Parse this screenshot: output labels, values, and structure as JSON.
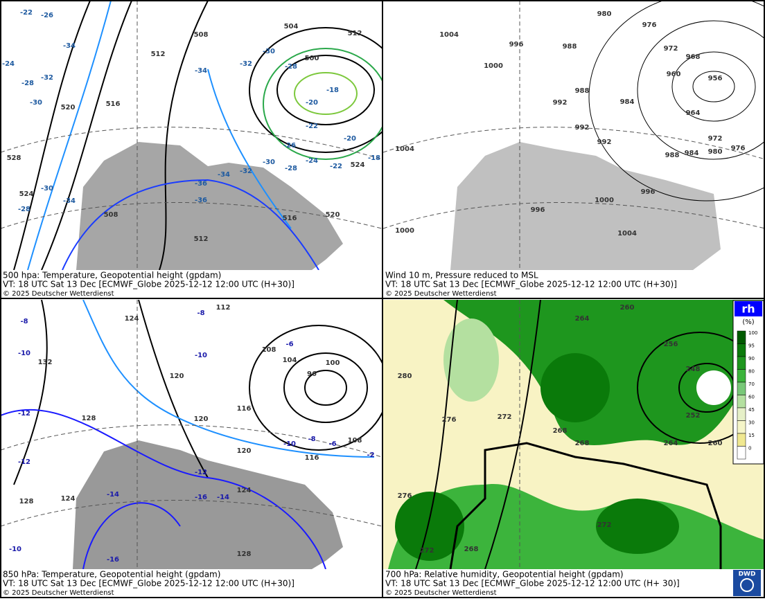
{
  "panels": [
    {
      "caption": [
        "500 hpa: Temperature, Geopotential height (gpdam)",
        "VT: 18 UTC Sat  13 Dec [ECMWF_Globe 2025-12-12 12:00 UTC  (H+30)]",
        "© 2025 Deutscher Wetterdienst"
      ],
      "labels": [
        "504",
        "500",
        "508",
        "512",
        "516",
        "520",
        "524",
        "528",
        "512",
        "524",
        "520",
        "516",
        "512",
        "508",
        "-30",
        "-28",
        "-26",
        "-28",
        "-30",
        "-32",
        "-32",
        "-34",
        "-34",
        "-36",
        "-36",
        "-34",
        "-24",
        "-22",
        "-20",
        "-22",
        "-18",
        "-20",
        "-18",
        "-30",
        "-28",
        "-34",
        "-32",
        "-30",
        "-22",
        "-26",
        "-24",
        "-28"
      ]
    },
    {
      "caption": [
        "Wind 10 m, Pressure reduced to MSL",
        "VT: 18 UTC Sat  13 Dec [ECMWF_Globe 2025-12-12 12:00 UTC  (H+30)]",
        "© 2025 Deutscher Wetterdienst"
      ],
      "labels": [
        "1004",
        "996",
        "988",
        "980",
        "976",
        "972",
        "968",
        "960",
        "956",
        "964",
        "972",
        "980",
        "976",
        "984",
        "988",
        "984",
        "988",
        "992",
        "992",
        "992",
        "1000",
        "1004",
        "996",
        "1000",
        "996",
        "1004",
        "1000"
      ]
    },
    {
      "caption": [
        "850 hPa:  Temperature, Geopotential height (gpdam)",
        "VT: 18 UTC Sat  13 Dec [ECMWF_Globe 2025-12-12 12:00 UTC  (H+30)]",
        "© 2025 Deutscher Wetterdienst"
      ],
      "labels": [
        "112",
        "124",
        "132",
        "120",
        "120",
        "116",
        "108",
        "104",
        "100",
        "96",
        "108",
        "116",
        "120",
        "128",
        "128",
        "124",
        "124",
        "128",
        "-8",
        "-10",
        "-6",
        "-8",
        "-10",
        "-12",
        "-12",
        "-12",
        "-14",
        "-16",
        "-14",
        "-16",
        "-10",
        "-10",
        "-8",
        "-6",
        "-2"
      ]
    },
    {
      "caption": [
        "700 hPa:  Relative humidity, Geopotential height (gpdam)",
        "VT: 18 UTC Sat  13 Dec [ECMWF_Globe  2025-12-12 12:00 UTC  (H+ 30)]",
        "© 2025 Deutscher Wetterdienst"
      ],
      "labels": [
        "260",
        "264",
        "256",
        "248",
        "252",
        "260",
        "264",
        "268",
        "268",
        "272",
        "276",
        "280",
        "276",
        "272",
        "268",
        "272"
      ]
    }
  ],
  "legend": {
    "title": "rh",
    "unit": "(%)",
    "ticks": [
      "100",
      "95",
      "90",
      "80",
      "70",
      "60",
      "45",
      "30",
      "15",
      "0"
    ]
  },
  "logo": "DWD"
}
